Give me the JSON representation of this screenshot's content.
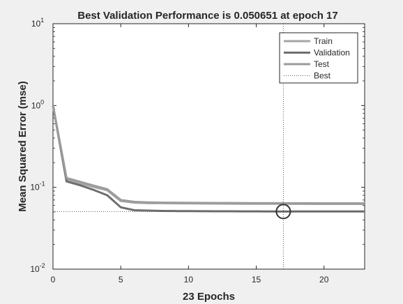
{
  "chart_data": {
    "type": "line",
    "title": "Best Validation Performance is 0.050651 at epoch 17",
    "xlabel": "23 Epochs",
    "ylabel": "Mean Squared Error  (mse)",
    "xlim": [
      0,
      23
    ],
    "ylim": [
      0.01,
      10
    ],
    "yscale": "log",
    "grid": false,
    "legend_position": "top-right",
    "x_ticks": [
      0,
      5,
      10,
      15,
      20
    ],
    "y_ticks": [
      {
        "value": 0.01,
        "base": "10",
        "exp": "-2"
      },
      {
        "value": 0.1,
        "base": "10",
        "exp": "-1"
      },
      {
        "value": 1,
        "base": "10",
        "exp": "0"
      },
      {
        "value": 10,
        "base": "10",
        "exp": "1"
      }
    ],
    "x": [
      0,
      1,
      2,
      3,
      4,
      5,
      6,
      7,
      8,
      9,
      10,
      11,
      12,
      13,
      14,
      15,
      16,
      17,
      18,
      19,
      20,
      21,
      22,
      23
    ],
    "series": [
      {
        "name": "Train",
        "color": "#a6a6a6",
        "values": [
          1.0,
          0.125,
          0.112,
          0.101,
          0.092,
          0.068,
          0.065,
          0.064,
          0.064,
          0.0638,
          0.0636,
          0.0634,
          0.0632,
          0.0631,
          0.063,
          0.063,
          0.0629,
          0.0628,
          0.0628,
          0.0627,
          0.0627,
          0.0626,
          0.0626,
          0.0626
        ]
      },
      {
        "name": "Validation",
        "color": "#6e6e6e",
        "values": [
          1.0,
          0.118,
          0.106,
          0.093,
          0.08,
          0.057,
          0.0525,
          0.052,
          0.0515,
          0.0513,
          0.0512,
          0.0511,
          0.051,
          0.051,
          0.0509,
          0.0508,
          0.0507,
          0.050651,
          0.0507,
          0.0507,
          0.0507,
          0.0507,
          0.0507,
          0.0507
        ]
      },
      {
        "name": "Test",
        "color": "#9b9b9b",
        "values": [
          1.0,
          0.13,
          0.117,
          0.105,
          0.095,
          0.07,
          0.0665,
          0.0655,
          0.065,
          0.0648,
          0.0646,
          0.0645,
          0.0644,
          0.0643,
          0.0642,
          0.0641,
          0.064,
          0.064,
          0.0639,
          0.0639,
          0.0638,
          0.0638,
          0.0638,
          0.0638
        ]
      }
    ],
    "best": {
      "label": "Best",
      "epoch": 17,
      "value": 0.050651,
      "color": "#555555"
    }
  }
}
